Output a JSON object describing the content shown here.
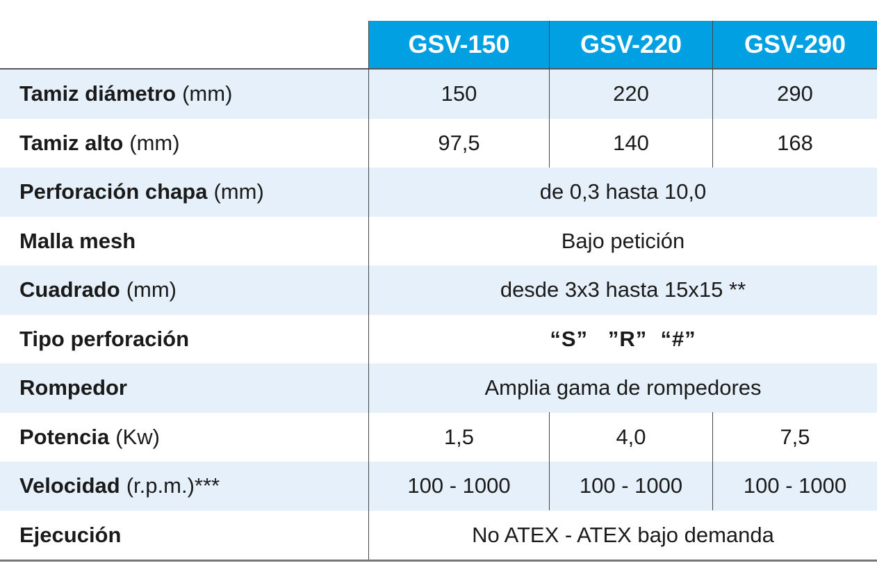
{
  "columns": [
    "GSV-150",
    "GSV-220",
    "GSV-290"
  ],
  "rows": [
    {
      "label": "Tamiz diámetro",
      "unit": "(mm)",
      "values": [
        "150",
        "220",
        "290"
      ]
    },
    {
      "label": "Tamiz alto",
      "unit": "(mm)",
      "values": [
        "97,5",
        "140",
        "168"
      ]
    },
    {
      "label": "Perforación chapa",
      "unit": "(mm)",
      "span": "de 0,3 hasta 10,0"
    },
    {
      "label": "Malla mesh",
      "unit": "",
      "span": "Bajo petición"
    },
    {
      "label": "Cuadrado",
      "unit": "(mm)",
      "span": "desde 3x3 hasta 15x15 **"
    },
    {
      "label": "Tipo perforación",
      "unit": "",
      "span": "“S”   ”R”  “#”"
    },
    {
      "label": "Rompedor",
      "unit": "",
      "span": "Amplia gama de rompedores"
    },
    {
      "label": "Potencia",
      "unit": "(Kw)",
      "values": [
        "1,5",
        "4,0",
        "7,5"
      ]
    },
    {
      "label": "Velocidad",
      "unit": "(r.p.m.)***",
      "values": [
        "100 - 1000",
        "100 - 1000",
        "100 - 1000"
      ]
    },
    {
      "label": "Ejecución",
      "unit": "",
      "span": "No ATEX - ATEX bajo demanda"
    }
  ],
  "colors": {
    "header_bg": "#00a0e3",
    "header_text": "#ffffff",
    "row_shade": "#e6f0fa"
  }
}
